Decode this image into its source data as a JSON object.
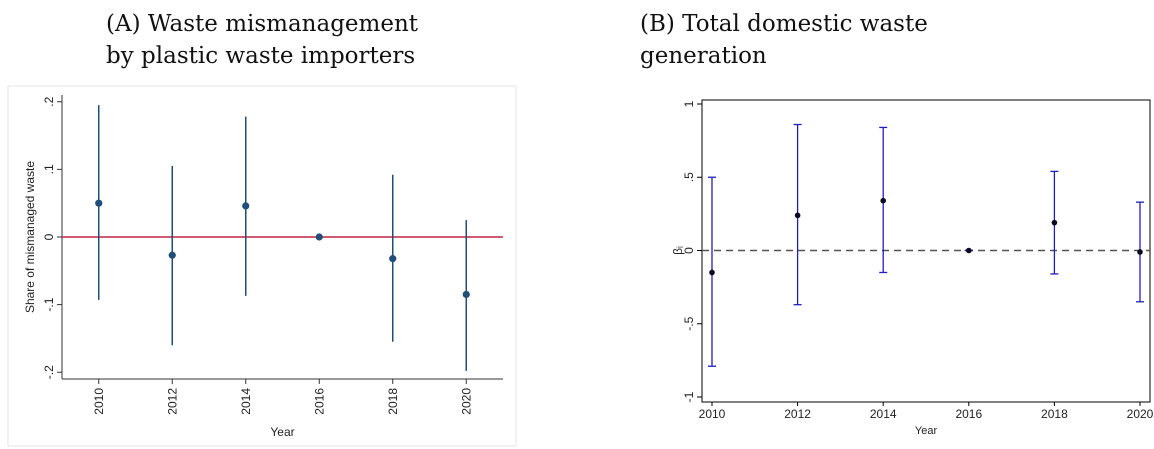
{
  "captions": {
    "a": {
      "line1": "(A) Waste mismanagement",
      "line2": "by plastic waste importers"
    },
    "b": {
      "line1": "(B)  Total domestic waste",
      "line2": "generation"
    }
  },
  "chart_data": [
    {
      "type": "scatter",
      "subtype": "coefficient plot with confidence intervals",
      "panel": "A",
      "xlabel": "Year",
      "ylabel": "Share of mismanaged waste",
      "x": [
        2010,
        2012,
        2014,
        2016,
        2018,
        2020
      ],
      "y": [
        0.05,
        -0.027,
        0.046,
        0.0,
        -0.032,
        -0.085
      ],
      "ci_low": [
        -0.093,
        -0.16,
        -0.087,
        0.0,
        -0.155,
        -0.198
      ],
      "ci_high": [
        0.195,
        0.105,
        0.178,
        0.0,
        0.092,
        0.025
      ],
      "xlim": [
        2009,
        2021
      ],
      "ylim": [
        -0.21,
        0.21
      ],
      "xticks": [
        "2010",
        "2012",
        "2014",
        "2016",
        "2018",
        "2020"
      ],
      "yticks": [
        -0.2,
        -0.1,
        0,
        0.1,
        0.2
      ],
      "ytick_labels": [
        "-.2",
        "-.1",
        "0",
        ".1",
        ".2"
      ],
      "reference_line": 0,
      "colors": {
        "marker": "#1f4e79",
        "interval": "#1f4e79",
        "reference": "#c0243e",
        "axis": "#333333"
      },
      "grid": false
    },
    {
      "type": "scatter",
      "subtype": "coefficient plot with capped confidence intervals",
      "panel": "B",
      "xlabel": "Year",
      "ylabel": "βᵢ",
      "x": [
        2010,
        2012,
        2014,
        2016,
        2018,
        2020
      ],
      "y": [
        -0.15,
        0.24,
        0.34,
        0.0,
        0.19,
        -0.01
      ],
      "ci_low": [
        -0.79,
        -0.37,
        -0.15,
        0.0,
        -0.16,
        -0.35
      ],
      "ci_high": [
        0.5,
        0.86,
        0.84,
        0.0,
        0.54,
        0.33
      ],
      "xlim": [
        2010,
        2020
      ],
      "ylim": [
        -1,
        1
      ],
      "xticks": [
        "2010",
        "2012",
        "2014",
        "2016",
        "2018",
        "2020"
      ],
      "yticks": [
        -1,
        -0.5,
        0,
        0.5,
        1
      ],
      "ytick_labels": [
        "-1",
        "-.5",
        "0",
        ".5",
        "1"
      ],
      "reference_line": 0,
      "colors": {
        "marker": "#0a0a1e",
        "interval": "#1f1fbf",
        "reference": "#555555",
        "axis": "#000000"
      },
      "grid": false
    }
  ]
}
